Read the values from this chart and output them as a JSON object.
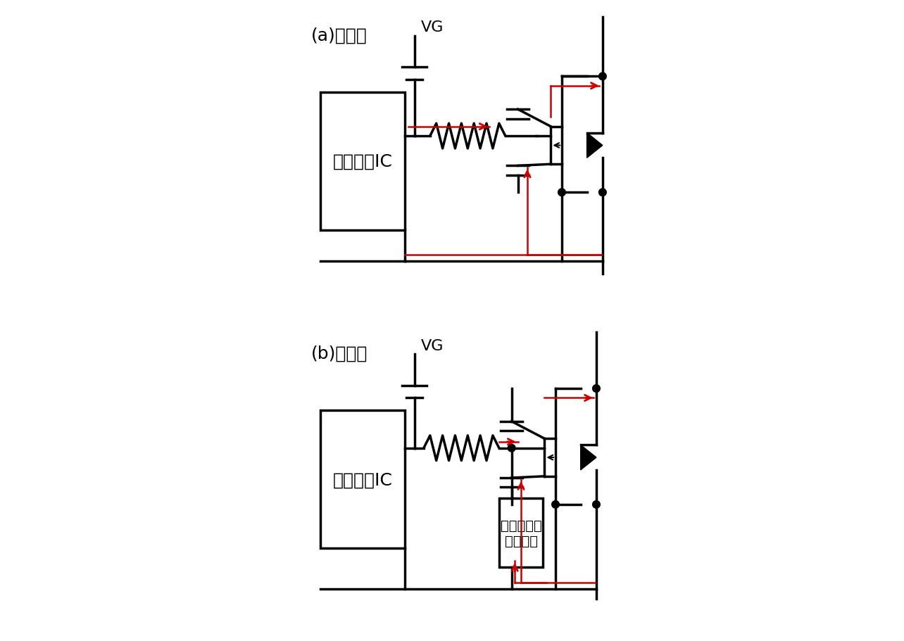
{
  "title_a": "(a)対策前",
  "title_b": "(b)対策後",
  "vg_label": "VG",
  "driver_label": "ドライバIC",
  "protection_label": "ゲート電圧\n保護機能",
  "black": "#000000",
  "red": "#cc0000",
  "white": "#ffffff",
  "lw": 2.5,
  "lw_thin": 1.5
}
